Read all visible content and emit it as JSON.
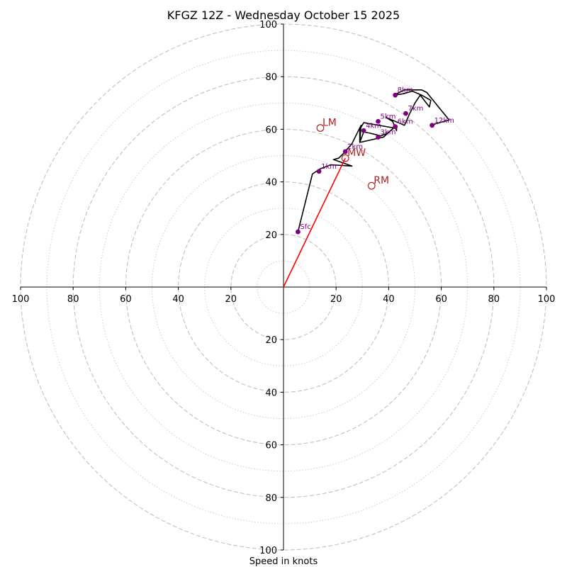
{
  "title": "KFGZ 12Z - Wednesday October 15 2025",
  "xlabel": "Speed in knots",
  "chart_data": {
    "type": "hodograph",
    "title": "KFGZ 12Z - Wednesday October 15 2025",
    "xlabel": "Speed in knots",
    "units": "knots",
    "range": 100,
    "major_rings": [
      20,
      40,
      60,
      80,
      100
    ],
    "minor_rings": [
      10,
      30,
      50,
      70,
      90
    ],
    "grid": true,
    "x_tick_labels": [
      "100",
      "80",
      "60",
      "40",
      "20",
      "20",
      "40",
      "60",
      "80",
      "100"
    ],
    "y_tick_labels_up": [
      "20",
      "40",
      "60",
      "80",
      "100"
    ],
    "y_tick_labels_down": [
      "20",
      "40",
      "60",
      "80",
      "100"
    ],
    "wind_profile_uv": [
      [
        5.5,
        21
      ],
      [
        11,
        43
      ],
      [
        14,
        45
      ],
      [
        18,
        46.5
      ],
      [
        26,
        46
      ],
      [
        19,
        48.5
      ],
      [
        21,
        49
      ],
      [
        23,
        51
      ],
      [
        26,
        54.5
      ],
      [
        29.5,
        61.5
      ],
      [
        29,
        55
      ],
      [
        30.5,
        59
      ],
      [
        33,
        58.5
      ],
      [
        37,
        57.5
      ],
      [
        39.5,
        58.5
      ],
      [
        42,
        60.5
      ],
      [
        30.5,
        62.5
      ],
      [
        29,
        60
      ],
      [
        29,
        55
      ],
      [
        38,
        57
      ],
      [
        43,
        61.5
      ],
      [
        43,
        59.5
      ],
      [
        41.5,
        63
      ],
      [
        39,
        64.5
      ],
      [
        46,
        61.5
      ],
      [
        48,
        66
      ],
      [
        50,
        70
      ],
      [
        52,
        73
      ],
      [
        55.5,
        68.5
      ],
      [
        56,
        71
      ],
      [
        52.5,
        73
      ],
      [
        49,
        74.5
      ],
      [
        45.5,
        73.5
      ],
      [
        42,
        73
      ],
      [
        46,
        75
      ],
      [
        52.5,
        75
      ],
      [
        54.5,
        74
      ],
      [
        63,
        63.5
      ],
      [
        57.5,
        62
      ],
      [
        56.5,
        61
      ]
    ],
    "height_markers": [
      {
        "label": "Sfc",
        "u": 5.5,
        "v": 21
      },
      {
        "label": "1km",
        "u": 13.5,
        "v": 44
      },
      {
        "label": "2km",
        "u": 23.5,
        "v": 51.5
      },
      {
        "label": "3km",
        "u": 36,
        "v": 57
      },
      {
        "label": "4km",
        "u": 30.5,
        "v": 59.5
      },
      {
        "label": "5km",
        "u": 36,
        "v": 63
      },
      {
        "label": "6km",
        "u": 42.5,
        "v": 61
      },
      {
        "label": "7km",
        "u": 46.5,
        "v": 66
      },
      {
        "label": "8km",
        "u": 42.5,
        "v": 73
      },
      {
        "label": "12km",
        "u": 56.5,
        "v": 61.5
      }
    ],
    "storm_motion": [
      {
        "label": "LM",
        "u": 14,
        "v": 60.5
      },
      {
        "label": "MW",
        "u": 23.5,
        "v": 49
      },
      {
        "label": "RM",
        "u": 33.5,
        "v": 38.5
      }
    ],
    "mean_wind_vector": {
      "u": 23.5,
      "v": 49
    },
    "colors": {
      "hodograph": "#000000",
      "height_markers": "#800080",
      "storm_motion": "#b22222",
      "vector": "#ff0000",
      "grid": "#bbbbbb"
    }
  }
}
